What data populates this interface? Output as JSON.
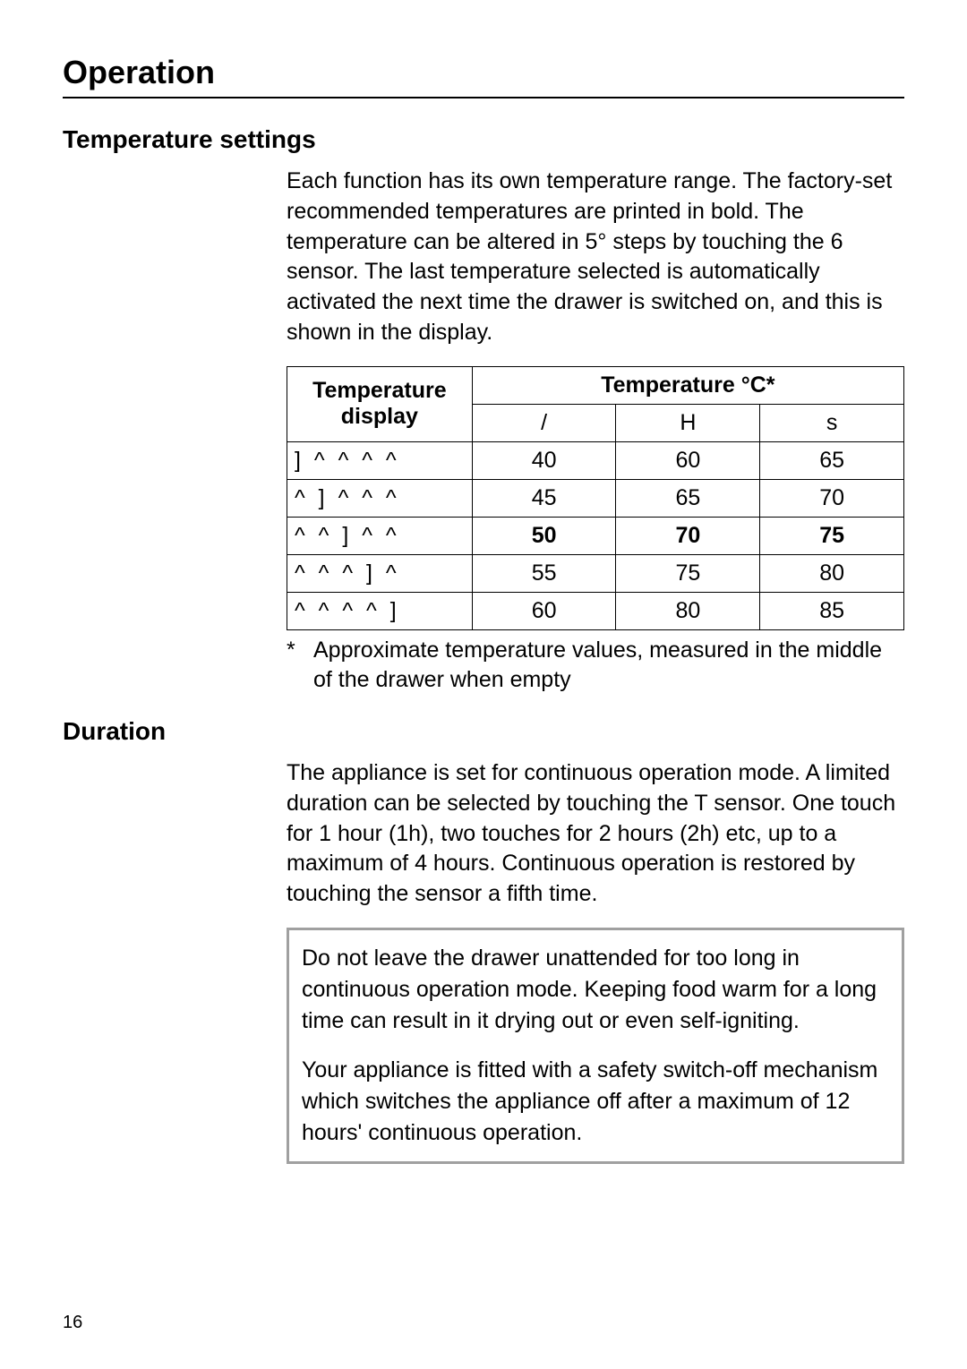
{
  "page": {
    "title": "Operation",
    "number": "16"
  },
  "temperature": {
    "heading": "Temperature settings",
    "intro_parts": {
      "a": "Each function has its own temperature range. The factory-set recommended temperatures are printed in bold. The temperature can be altered in 5° steps by touching the ",
      "sensor": "6",
      "b": " sensor. The last temperature selected is automatically activated the next time the drawer is switched on, and this is shown in the display."
    },
    "table": {
      "header_display": "Temperature display",
      "header_temp": "Temperature °C*",
      "subheaders": [
        "/",
        "H",
        "s"
      ],
      "bold_row_index": 2,
      "rows": [
        {
          "display": "] ^ ^ ^ ^",
          "vals": [
            "40",
            "60",
            "65"
          ]
        },
        {
          "display": "^ ] ^ ^ ^",
          "vals": [
            "45",
            "65",
            "70"
          ]
        },
        {
          "display": "^ ^ ] ^ ^",
          "vals": [
            "50",
            "70",
            "75"
          ]
        },
        {
          "display": "^ ^ ^ ] ^",
          "vals": [
            "55",
            "75",
            "80"
          ]
        },
        {
          "display": "^ ^ ^ ^ ]",
          "vals": [
            "60",
            "80",
            "85"
          ]
        }
      ]
    },
    "footnote_star": "*",
    "footnote": "Approximate temperature values, measured in the middle of the drawer when empty"
  },
  "duration": {
    "heading": "Duration",
    "intro_parts": {
      "a": "The appliance is set for continuous operation mode. A limited duration can be selected by touching the ",
      "sensor": "T",
      "b": " sensor. One touch for 1 hour (1h), two touches for 2 hours (2h) etc, up to a maximum of 4 hours. Continuous operation is restored by touching the sensor a fifth time."
    },
    "caution": {
      "p1": "Do not leave the drawer unattended for too long in continuous operation mode. Keeping food warm for a long time can result in it drying out or even self-igniting.",
      "p2": "Your appliance is fitted with a safety switch-off mechanism which switches the appliance off after a maximum of 12 hours' continuous operation."
    }
  },
  "colors": {
    "text": "#000000",
    "background": "#ffffff",
    "box_border": "#a0a0a0"
  }
}
